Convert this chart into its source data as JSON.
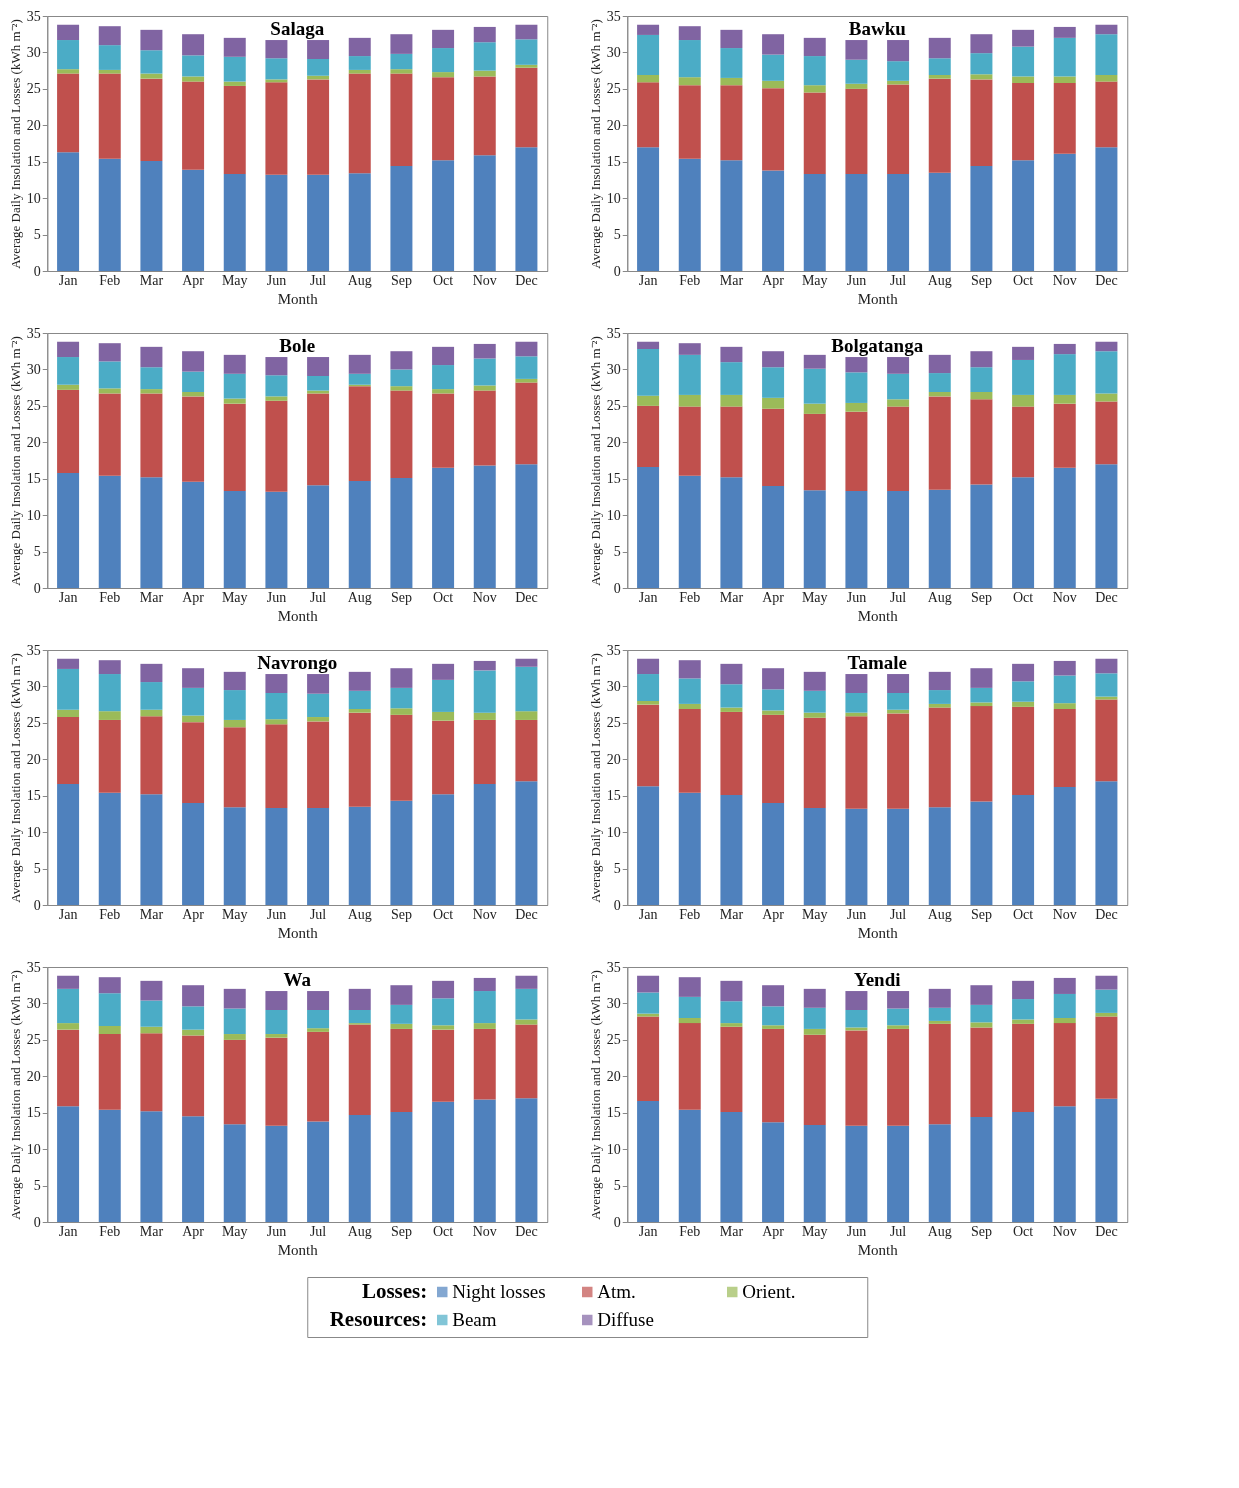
{
  "chart_data": [
    {
      "type": "bar",
      "stacked": true,
      "title": "Salaga",
      "xlabel": "Month",
      "ylabel": "Average Daily  Insolation and Losses (kWh m⁻²)",
      "ylim": [
        0,
        35
      ],
      "yticks": [
        0,
        5,
        10,
        15,
        20,
        25,
        30,
        35
      ],
      "legend": "bottom",
      "legend_title": "Losses:",
      "annotations": [
        "Resources:"
      ],
      "categories": [
        "Jan",
        "Feb",
        "Mar",
        "Apr",
        "May",
        "Jun",
        "Jul",
        "Aug",
        "Sep",
        "Oct",
        "Nov",
        "Dec"
      ],
      "series": [
        {
          "name": "Night losses",
          "color": "#4f81bd",
          "values": [
            16.3,
            15.4,
            15.1,
            13.9,
            13.3,
            13.2,
            13.2,
            13.4,
            14.4,
            15.2,
            15.9,
            17.0
          ]
        },
        {
          "name": "Atm.",
          "color": "#c0504d",
          "values": [
            10.8,
            11.7,
            11.3,
            12.1,
            12.1,
            12.7,
            13.1,
            13.7,
            12.7,
            11.4,
            10.8,
            10.9
          ]
        },
        {
          "name": "Orient.",
          "color": "#9bbb59",
          "values": [
            0.6,
            0.5,
            0.7,
            0.7,
            0.6,
            0.4,
            0.5,
            0.5,
            0.6,
            0.7,
            0.8,
            0.4
          ]
        },
        {
          "name": "Beam",
          "color": "#4bacc6",
          "values": [
            4.0,
            3.4,
            3.2,
            2.9,
            3.4,
            2.9,
            2.3,
            1.9,
            2.1,
            3.3,
            3.9,
            3.5
          ]
        },
        {
          "name": "Diffuse",
          "color": "#8064a2",
          "values": [
            2.1,
            2.6,
            2.8,
            2.9,
            2.6,
            2.5,
            2.6,
            2.5,
            2.7,
            2.5,
            2.1,
            2.0
          ]
        }
      ]
    },
    {
      "type": "bar",
      "stacked": true,
      "title": "Bawku",
      "xlabel": "Month",
      "ylabel": "Average Daily  Insolation and Losses (kWh m⁻²)",
      "ylim": [
        0,
        35
      ],
      "yticks": [
        0,
        5,
        10,
        15,
        20,
        25,
        30,
        35
      ],
      "categories": [
        "Jan",
        "Feb",
        "Mar",
        "Apr",
        "May",
        "Jun",
        "Jul",
        "Aug",
        "Sep",
        "Oct",
        "Nov",
        "Dec"
      ],
      "series": [
        {
          "color": "#4f81bd",
          "values": [
            17.0,
            15.4,
            15.2,
            13.8,
            13.3,
            13.3,
            13.3,
            13.5,
            14.4,
            15.2,
            16.1,
            17.0
          ]
        },
        {
          "color": "#c0504d",
          "values": [
            8.9,
            10.1,
            10.3,
            11.3,
            11.2,
            11.7,
            12.3,
            12.9,
            11.9,
            10.6,
            9.7,
            9.0
          ]
        },
        {
          "color": "#9bbb59",
          "values": [
            1.0,
            1.1,
            1.0,
            1.0,
            1.0,
            0.7,
            0.5,
            0.5,
            0.7,
            0.9,
            0.9,
            0.9
          ]
        },
        {
          "color": "#4bacc6",
          "values": [
            5.5,
            5.1,
            4.1,
            3.6,
            4.0,
            3.3,
            2.7,
            2.3,
            2.9,
            4.1,
            5.3,
            5.6
          ]
        },
        {
          "color": "#8064a2",
          "values": [
            1.4,
            1.9,
            2.5,
            2.8,
            2.5,
            2.7,
            2.9,
            2.8,
            2.6,
            2.3,
            1.5,
            1.3
          ]
        }
      ]
    },
    {
      "type": "bar",
      "stacked": true,
      "title": "Bole",
      "xlabel": "Month",
      "ylabel": "Average Daily  Insolation and Losses (kWh m⁻²)",
      "ylim": [
        0,
        35
      ],
      "yticks": [
        0,
        5,
        10,
        15,
        20,
        25,
        30,
        35
      ],
      "categories": [
        "Jan",
        "Feb",
        "Mar",
        "Apr",
        "May",
        "Jun",
        "Jul",
        "Aug",
        "Sep",
        "Oct",
        "Nov",
        "Dec"
      ],
      "series": [
        {
          "color": "#4f81bd",
          "values": [
            15.8,
            15.4,
            15.2,
            14.6,
            13.3,
            13.2,
            14.1,
            14.7,
            15.1,
            16.5,
            16.8,
            17.0
          ]
        },
        {
          "color": "#c0504d",
          "values": [
            11.4,
            11.3,
            11.5,
            11.7,
            12.0,
            12.5,
            12.6,
            13.0,
            12.0,
            10.2,
            10.3,
            11.2
          ]
        },
        {
          "color": "#9bbb59",
          "values": [
            0.7,
            0.7,
            0.6,
            0.6,
            0.7,
            0.6,
            0.4,
            0.2,
            0.6,
            0.6,
            0.7,
            0.5
          ]
        },
        {
          "color": "#4bacc6",
          "values": [
            3.8,
            3.7,
            3.0,
            2.8,
            3.4,
            2.9,
            2.0,
            1.5,
            2.3,
            3.3,
            3.7,
            3.1
          ]
        },
        {
          "color": "#8064a2",
          "values": [
            2.1,
            2.5,
            2.8,
            2.8,
            2.6,
            2.5,
            2.6,
            2.6,
            2.5,
            2.5,
            2.0,
            2.0
          ]
        }
      ]
    },
    {
      "type": "bar",
      "stacked": true,
      "title": "Bolgatanga",
      "xlabel": "Month",
      "ylabel": "Average Daily  Insolation and Losses (kWh m⁻²)",
      "ylim": [
        0,
        35
      ],
      "yticks": [
        0,
        5,
        10,
        15,
        20,
        25,
        30,
        35
      ],
      "categories": [
        "Jan",
        "Feb",
        "Mar",
        "Apr",
        "May",
        "Jun",
        "Jul",
        "Aug",
        "Sep",
        "Oct",
        "Nov",
        "Dec"
      ],
      "series": [
        {
          "color": "#4f81bd",
          "values": [
            16.6,
            15.4,
            15.2,
            14.0,
            13.4,
            13.3,
            13.3,
            13.5,
            14.2,
            15.2,
            16.5,
            17.0
          ]
        },
        {
          "color": "#c0504d",
          "values": [
            8.4,
            9.5,
            9.7,
            10.6,
            10.5,
            10.9,
            11.6,
            12.8,
            11.7,
            9.7,
            8.8,
            8.6
          ]
        },
        {
          "color": "#9bbb59",
          "values": [
            1.4,
            1.6,
            1.6,
            1.5,
            1.4,
            1.2,
            1.0,
            0.6,
            1.0,
            1.6,
            1.2,
            1.1
          ]
        },
        {
          "color": "#4bacc6",
          "values": [
            6.4,
            5.5,
            4.5,
            4.2,
            4.8,
            4.2,
            3.5,
            2.6,
            3.4,
            4.8,
            5.6,
            5.8
          ]
        },
        {
          "color": "#8064a2",
          "values": [
            1.0,
            1.6,
            2.1,
            2.2,
            1.9,
            2.1,
            2.3,
            2.5,
            2.2,
            1.8,
            1.4,
            1.3
          ]
        }
      ]
    },
    {
      "type": "bar",
      "stacked": true,
      "title": "Navrongo",
      "xlabel": "Month",
      "ylabel": "Average Daily  Insolation and Losses (kWh m⁻²)",
      "ylim": [
        0,
        35
      ],
      "yticks": [
        0,
        5,
        10,
        15,
        20,
        25,
        30,
        35
      ],
      "categories": [
        "Jan",
        "Feb",
        "Mar",
        "Apr",
        "May",
        "Jun",
        "Jul",
        "Aug",
        "Sep",
        "Oct",
        "Nov",
        "Dec"
      ],
      "series": [
        {
          "color": "#4f81bd",
          "values": [
            16.6,
            15.4,
            15.2,
            14.0,
            13.4,
            13.3,
            13.3,
            13.5,
            14.3,
            15.2,
            16.6,
            17.0
          ]
        },
        {
          "color": "#c0504d",
          "values": [
            9.2,
            10.0,
            10.7,
            11.1,
            11.0,
            11.5,
            11.9,
            12.9,
            11.8,
            10.1,
            8.8,
            8.4
          ]
        },
        {
          "color": "#9bbb59",
          "values": [
            1.0,
            1.2,
            0.9,
            0.9,
            1.0,
            0.7,
            0.6,
            0.5,
            0.9,
            1.2,
            1.0,
            1.2
          ]
        },
        {
          "color": "#4bacc6",
          "values": [
            5.6,
            5.1,
            3.8,
            3.8,
            4.1,
            3.6,
            3.2,
            2.5,
            2.8,
            4.4,
            5.8,
            6.1
          ]
        },
        {
          "color": "#8064a2",
          "values": [
            1.4,
            1.9,
            2.5,
            2.7,
            2.5,
            2.6,
            2.7,
            2.6,
            2.7,
            2.2,
            1.3,
            1.1
          ]
        }
      ]
    },
    {
      "type": "bar",
      "stacked": true,
      "title": "Tamale",
      "xlabel": "Month",
      "ylabel": "Average Daily  Insolation and Losses (kWh m⁻²)",
      "ylim": [
        0,
        35
      ],
      "yticks": [
        0,
        5,
        10,
        15,
        20,
        25,
        30,
        35
      ],
      "categories": [
        "Jan",
        "Feb",
        "Mar",
        "Apr",
        "May",
        "Jun",
        "Jul",
        "Aug",
        "Sep",
        "Oct",
        "Nov",
        "Dec"
      ],
      "series": [
        {
          "color": "#4f81bd",
          "values": [
            16.3,
            15.4,
            15.1,
            14.0,
            13.3,
            13.2,
            13.2,
            13.4,
            14.2,
            15.1,
            16.2,
            17.0
          ]
        },
        {
          "color": "#c0504d",
          "values": [
            11.2,
            11.5,
            11.4,
            12.1,
            12.4,
            12.7,
            13.1,
            13.7,
            13.1,
            12.1,
            10.7,
            11.2
          ]
        },
        {
          "color": "#9bbb59",
          "values": [
            0.5,
            0.7,
            0.6,
            0.6,
            0.7,
            0.5,
            0.5,
            0.5,
            0.5,
            0.7,
            0.8,
            0.4
          ]
        },
        {
          "color": "#4bacc6",
          "values": [
            3.7,
            3.5,
            3.2,
            2.9,
            3.0,
            2.7,
            2.3,
            1.9,
            2.0,
            2.8,
            3.8,
            3.2
          ]
        },
        {
          "color": "#8064a2",
          "values": [
            2.1,
            2.5,
            2.8,
            2.9,
            2.6,
            2.6,
            2.6,
            2.5,
            2.7,
            2.4,
            2.0,
            2.0
          ]
        }
      ]
    },
    {
      "type": "bar",
      "stacked": true,
      "title": "Wa",
      "xlabel": "Month",
      "ylabel": "Average Daily  Insolation and Losses (kWh m⁻²)",
      "ylim": [
        0,
        35
      ],
      "yticks": [
        0,
        5,
        10,
        15,
        20,
        25,
        30,
        35
      ],
      "categories": [
        "Jan",
        "Feb",
        "Mar",
        "Apr",
        "May",
        "Jun",
        "Jul",
        "Aug",
        "Sep",
        "Oct",
        "Nov",
        "Dec"
      ],
      "series": [
        {
          "color": "#4f81bd",
          "values": [
            15.9,
            15.4,
            15.2,
            14.5,
            13.4,
            13.2,
            13.8,
            14.7,
            15.1,
            16.5,
            16.8,
            17.0
          ]
        },
        {
          "color": "#c0504d",
          "values": [
            10.5,
            10.4,
            10.7,
            11.1,
            11.6,
            12.1,
            12.3,
            12.4,
            11.4,
            9.9,
            9.7,
            10.1
          ]
        },
        {
          "color": "#9bbb59",
          "values": [
            0.9,
            1.1,
            0.9,
            0.8,
            0.8,
            0.5,
            0.5,
            0.2,
            0.7,
            0.6,
            0.8,
            0.7
          ]
        },
        {
          "color": "#4bacc6",
          "values": [
            4.7,
            4.5,
            3.6,
            3.2,
            3.5,
            3.3,
            2.5,
            1.8,
            2.6,
            3.7,
            4.4,
            4.2
          ]
        },
        {
          "color": "#8064a2",
          "values": [
            1.8,
            2.2,
            2.7,
            2.9,
            2.7,
            2.6,
            2.6,
            2.9,
            2.7,
            2.4,
            1.8,
            1.8
          ]
        }
      ]
    },
    {
      "type": "bar",
      "stacked": true,
      "title": "Yendi",
      "xlabel": "Month",
      "ylabel": "Average Daily  Insolation and Losses (kWh m⁻²)",
      "ylim": [
        0,
        35
      ],
      "yticks": [
        0,
        5,
        10,
        15,
        20,
        25,
        30,
        35
      ],
      "categories": [
        "Jan",
        "Feb",
        "Mar",
        "Apr",
        "May",
        "Jun",
        "Jul",
        "Aug",
        "Sep",
        "Oct",
        "Nov",
        "Dec"
      ],
      "series": [
        {
          "color": "#4f81bd",
          "values": [
            16.6,
            15.4,
            15.1,
            13.7,
            13.3,
            13.2,
            13.2,
            13.4,
            14.4,
            15.1,
            15.9,
            16.9
          ]
        },
        {
          "color": "#c0504d",
          "values": [
            11.6,
            11.9,
            11.7,
            12.8,
            12.4,
            13.1,
            13.3,
            13.8,
            12.3,
            12.1,
            11.4,
            11.3
          ]
        },
        {
          "color": "#9bbb59",
          "values": [
            0.4,
            0.7,
            0.5,
            0.5,
            0.8,
            0.4,
            0.5,
            0.4,
            0.7,
            0.6,
            0.7,
            0.5
          ]
        },
        {
          "color": "#4bacc6",
          "values": [
            2.9,
            2.9,
            3.0,
            2.6,
            2.9,
            2.4,
            2.3,
            1.8,
            2.4,
            2.8,
            3.3,
            3.2
          ]
        },
        {
          "color": "#8064a2",
          "values": [
            2.3,
            2.7,
            2.8,
            2.9,
            2.6,
            2.6,
            2.4,
            2.6,
            2.7,
            2.5,
            2.2,
            1.9
          ]
        }
      ]
    }
  ]
}
